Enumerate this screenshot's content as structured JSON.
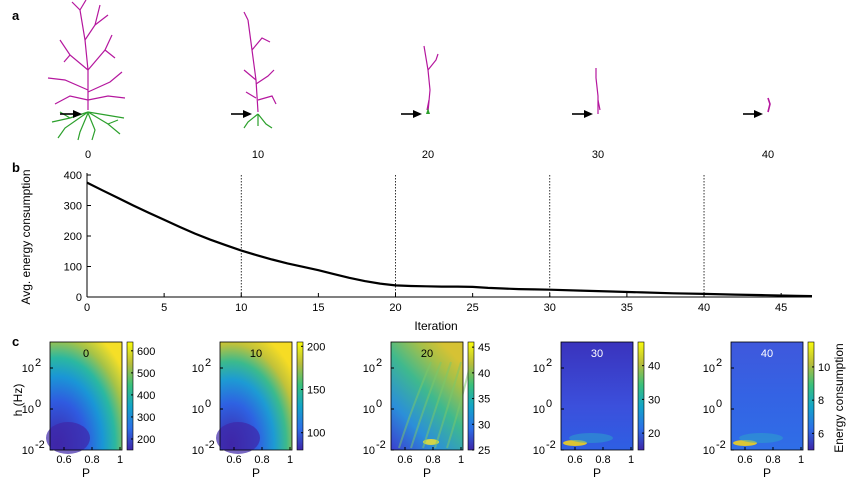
{
  "panels": {
    "a": "a",
    "b": "b",
    "c": "c"
  },
  "panel_a": {
    "iterations": [
      "0",
      "10",
      "20",
      "30",
      "40"
    ],
    "colors": {
      "apical": "#b5179e",
      "basal": "#2ca02c",
      "arrow": "#000000"
    }
  },
  "chart_data": [
    {
      "type": "line",
      "xlabel": "Iteration",
      "ylabel": "Avg. energy consumption",
      "xlim": [
        0,
        47
      ],
      "ylim": [
        0,
        400
      ],
      "xticks": [
        0,
        5,
        10,
        15,
        20,
        25,
        30,
        35,
        40,
        45
      ],
      "yticks": [
        0,
        100,
        200,
        300,
        400
      ],
      "vlines": [
        10,
        20,
        30,
        40
      ],
      "grid": false,
      "x": [
        0,
        1,
        2,
        3,
        4,
        5,
        6,
        7,
        8,
        9,
        10,
        11,
        12,
        13,
        14,
        15,
        16,
        17,
        18,
        19,
        20,
        21,
        22,
        23,
        24,
        25,
        26,
        27,
        28,
        29,
        30,
        32,
        34,
        36,
        38,
        40,
        42,
        44,
        46,
        47
      ],
      "y": [
        375,
        350,
        325,
        300,
        276,
        253,
        230,
        208,
        188,
        170,
        152,
        137,
        123,
        110,
        99,
        88,
        75,
        63,
        52,
        44,
        38,
        36,
        35,
        34,
        34,
        33,
        30,
        28,
        26,
        25,
        24,
        21,
        18,
        15,
        12,
        10,
        8,
        6,
        4,
        3
      ]
    },
    {
      "type": "heatmap",
      "title": "0",
      "xlabel": "P",
      "ylabel": "h (Hz)",
      "xticks": [
        "0.6",
        "0.8",
        "1"
      ],
      "yticks": [
        "10^2",
        "10^0",
        "10^-2"
      ],
      "colorbar": {
        "ticks": [
          200,
          300,
          400,
          500,
          600
        ],
        "range": [
          150,
          640
        ]
      }
    },
    {
      "type": "heatmap",
      "title": "10",
      "xlabel": "P",
      "ylabel": "",
      "xticks": [
        "0.6",
        "0.8",
        "1"
      ],
      "yticks": [
        "10^2",
        "10^0",
        "10^-2"
      ],
      "colorbar": {
        "ticks": [
          100,
          150,
          200
        ],
        "range": [
          80,
          205
        ]
      }
    },
    {
      "type": "heatmap",
      "title": "20",
      "xlabel": "P",
      "ylabel": "",
      "xticks": [
        "0.6",
        "0.8",
        "1"
      ],
      "yticks": [
        "10^2",
        "10^0",
        "10^-2"
      ],
      "colorbar": {
        "ticks": [
          25,
          30,
          35,
          40,
          45
        ],
        "range": [
          25,
          46
        ]
      }
    },
    {
      "type": "heatmap",
      "title": "30",
      "xlabel": "P",
      "ylabel": "",
      "xticks": [
        "0.6",
        "0.8",
        "1"
      ],
      "yticks": [
        "10^2",
        "10^0",
        "10^-2"
      ],
      "colorbar": {
        "ticks": [
          20,
          30,
          40
        ],
        "range": [
          15,
          47
        ]
      }
    },
    {
      "type": "heatmap",
      "title": "40",
      "xlabel": "P",
      "ylabel": "",
      "xticks": [
        "0.6",
        "0.8",
        "1"
      ],
      "yticks": [
        "10^2",
        "10^0",
        "10^-2"
      ],
      "colorbar": {
        "ticks": [
          6,
          8,
          10
        ],
        "range": [
          5,
          11.5
        ],
        "label": "Energy consumption"
      }
    }
  ]
}
